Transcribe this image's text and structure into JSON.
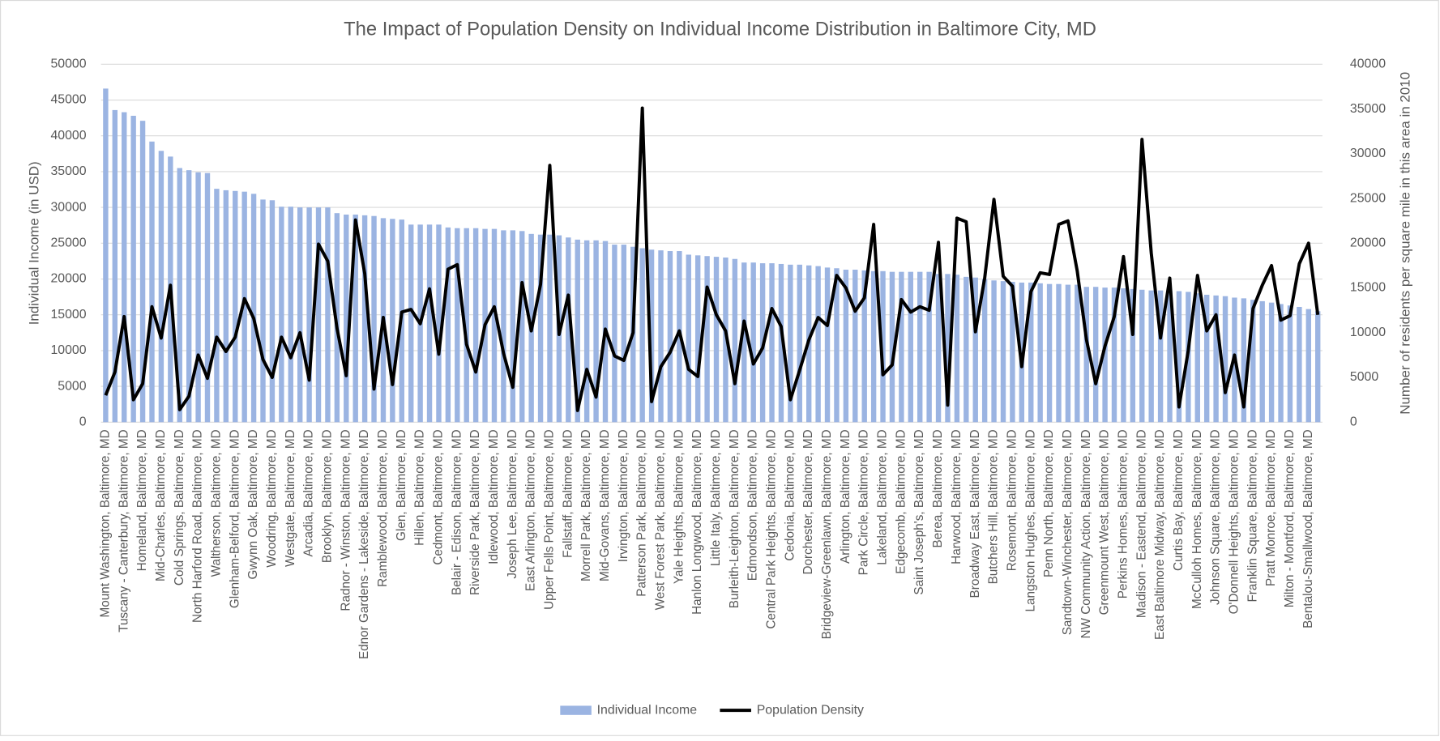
{
  "chart_data": {
    "type": "bar_line",
    "title": "The Impact of Population Density on Individual Income Distribution in Baltimore City, MD",
    "y_label": "Individual Income (in USD)",
    "y2_label": "Number of residents per square mile in this area in 2010",
    "categories": [
      "Mount Washington, Baltimore, MD",
      null,
      "Tuscany - Canterbury, Baltimore, MD",
      null,
      "Homeland, Baltimore, MD",
      null,
      "Mid-Charles, Baltimore, MD",
      null,
      "Cold Springs, Baltimore, MD",
      null,
      "North Harford Road, Baltimore, MD",
      null,
      "Waltherson, Baltimore, MD",
      null,
      "Glenham-Belford, Baltimore, MD",
      null,
      "Gwynn Oak, Baltimore, MD",
      null,
      "Woodring, Baltimore, MD",
      null,
      "Westgate, Baltimore, MD",
      null,
      "Arcadia, Baltimore, MD",
      null,
      "Brooklyn, Baltimore, MD",
      null,
      "Radnor - Winston, Baltimore, MD",
      null,
      "Ednor Gardens - Lakeside, Baltimore, MD",
      null,
      "Ramblewood, Baltimore, MD",
      null,
      "Glen, Baltimore, MD",
      null,
      "Hillen, Baltimore, MD",
      null,
      "Cedmont, Baltimore, MD",
      null,
      "Belair - Edison, Baltimore, MD",
      null,
      "Riverside Park, Baltimore, MD",
      null,
      "Idlewood, Baltimore, MD",
      null,
      "Joseph Lee, Baltimore, MD",
      null,
      "East Arlington, Baltimore, MD",
      null,
      "Upper Fells Point, Baltimore, MD",
      null,
      "Fallstaff, Baltimore, MD",
      null,
      "Morrell Park, Baltimore, MD",
      null,
      "Mid-Govans, Baltimore, MD",
      null,
      "Irvington, Baltimore, MD",
      null,
      "Patterson Park, Baltimore, MD",
      null,
      "West Forest Park, Baltimore, MD",
      null,
      "Yale Heights, Baltimore, MD",
      null,
      "Hanlon Longwood, Baltimore, MD",
      null,
      "Little Italy, Baltimore, MD",
      null,
      "Burleith-Leighton, Baltimore, MD",
      null,
      "Edmondson, Baltimore, MD",
      null,
      "Central Park Heights, Baltimore, MD",
      null,
      "Cedonia, Baltimore, MD",
      null,
      "Dorchester, Baltimore, MD",
      null,
      "Bridgeview-Greenlawn, Baltimore, MD",
      null,
      "Arlington, Baltimore, MD",
      null,
      "Park Circle, Baltimore, MD",
      null,
      "Lakeland, Baltimore, MD",
      null,
      "Edgecomb, Baltimore, MD",
      null,
      "Saint Joseph's, Baltimore, MD",
      null,
      "Berea, Baltimore, MD",
      null,
      "Harwood, Baltimore, MD",
      null,
      "Broadway East, Baltimore, MD",
      null,
      "Butchers Hill, Baltimore, MD",
      null,
      "Rosemont, Baltimore, MD",
      null,
      "Langston Hughes, Baltimore, MD",
      null,
      "Penn North, Baltimore, MD",
      null,
      "Sandtown-Winchester, Baltimore, MD",
      null,
      "NW Community Action, Baltimore, MD",
      null,
      "Greenmount West, Baltimore, MD",
      null,
      "Perkins Homes, Baltimore, MD",
      null,
      "Madison - Eastend, Baltimore, MD",
      null,
      "East Baltimore Midway, Baltimore, MD",
      null,
      "Curtis Bay, Baltimore, MD",
      null,
      "McCulloh Homes, Baltimore, MD",
      null,
      "Johnson Square, Baltimore, MD",
      null,
      "O'Donnell Heights, Baltimore, MD",
      null,
      "Franklin Square, Baltimore, MD",
      null,
      "Pratt Monroe, Baltimore, MD",
      null,
      "Milton - Montford, Baltimore, MD",
      null,
      "Bentalou-Smallwood, Baltimore, MD",
      null
    ],
    "series": [
      {
        "name": "Individual Income",
        "type": "bar",
        "color": "#9bb4e2",
        "values": [
          46600,
          43600,
          43300,
          42800,
          42100,
          39200,
          37900,
          37100,
          35500,
          35200,
          34900,
          34800,
          32600,
          32400,
          32300,
          32200,
          31900,
          31100,
          31000,
          30100,
          30100,
          30000,
          30000,
          30000,
          30000,
          29200,
          29000,
          29000,
          28900,
          28800,
          28500,
          28400,
          28300,
          27600,
          27600,
          27600,
          27600,
          27200,
          27100,
          27100,
          27100,
          27000,
          27000,
          26800,
          26800,
          26700,
          26300,
          26200,
          26200,
          26100,
          25800,
          25500,
          25400,
          25400,
          25300,
          24800,
          24800,
          24500,
          24300,
          24100,
          24000,
          23900,
          23900,
          23400,
          23300,
          23200,
          23100,
          23000,
          22800,
          22300,
          22300,
          22200,
          22200,
          22100,
          22000,
          22000,
          21900,
          21800,
          21600,
          21500,
          21300,
          21300,
          21200,
          21100,
          21100,
          21000,
          21000,
          21000,
          21000,
          21000,
          20700,
          20700,
          20600,
          20300,
          20200,
          20000,
          19800,
          19700,
          19600,
          19500,
          19500,
          19400,
          19300,
          19300,
          19200,
          19200,
          18900,
          18900,
          18800,
          18800,
          18700,
          18600,
          18500,
          18400,
          18400,
          18400,
          18300,
          18200,
          18000,
          17800,
          17700,
          17600,
          17400,
          17300,
          17100,
          16900,
          16700,
          16500,
          16300,
          16100,
          15800,
          15500
        ]
      },
      {
        "name": "Population Density",
        "type": "line",
        "axis": "y2",
        "color": "#000000",
        "values": [
          3000,
          5600,
          11800,
          2500,
          4300,
          12900,
          9400,
          15300,
          1400,
          2900,
          7500,
          4900,
          9500,
          7900,
          9500,
          13800,
          11600,
          7000,
          5000,
          9500,
          7200,
          10000,
          4700,
          19900,
          18000,
          10500,
          5200,
          22600,
          16600,
          3700,
          11700,
          4200,
          12300,
          12600,
          11000,
          14900,
          7600,
          17100,
          17600,
          8700,
          5600,
          10900,
          12900,
          7700,
          3900,
          15600,
          10200,
          15400,
          28700,
          9800,
          14200,
          1300,
          5900,
          2800,
          10400,
          7400,
          6900,
          10000,
          35100,
          2300,
          6200,
          7800,
          10200,
          5900,
          5100,
          15100,
          12000,
          10200,
          4300,
          11300,
          6500,
          8300,
          12700,
          10700,
          2500,
          5800,
          9200,
          11700,
          10800,
          16400,
          15000,
          12400,
          13900,
          22100,
          5300,
          6400,
          13700,
          12300,
          12900,
          12500,
          20100,
          1900,
          22800,
          22400,
          10100,
          16100,
          24900,
          16300,
          15200,
          6200,
          14600,
          16700,
          16500,
          22100,
          22500,
          16900,
          9200,
          4300,
          8500,
          11800,
          18500,
          9800,
          31600,
          18900,
          9400,
          16100,
          1700,
          8000,
          16400,
          10200,
          12000,
          3300,
          7500,
          1700,
          12700,
          15300,
          17500,
          11400,
          11900,
          17700,
          20000,
          12000
        ]
      }
    ],
    "ylim": [
      0,
      50000
    ],
    "yticks": [
      0,
      5000,
      10000,
      15000,
      20000,
      25000,
      30000,
      35000,
      40000,
      45000,
      50000
    ],
    "y2lim": [
      0,
      40000
    ],
    "y2ticks": [
      0,
      5000,
      10000,
      15000,
      20000,
      25000,
      30000,
      35000,
      40000
    ],
    "grid": true,
    "legend": "bottom"
  }
}
